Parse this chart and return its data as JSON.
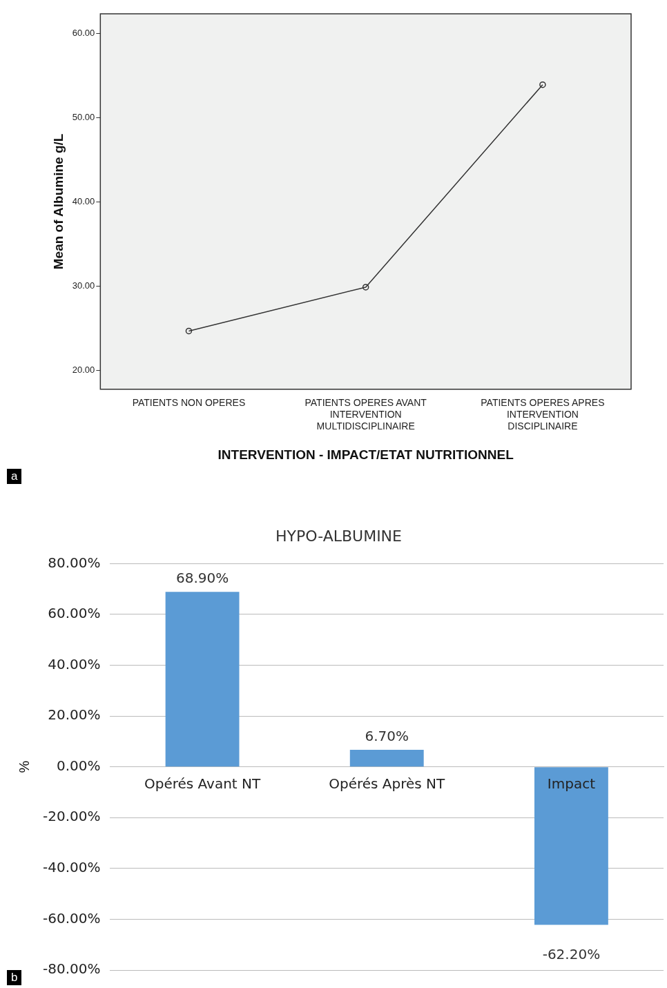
{
  "chart_data": [
    {
      "type": "line",
      "xlabel": "INTERVENTION - IMPACT/ETAT NUTRITIONNEL",
      "ylabel": "Mean of Albumine g/L",
      "categories": [
        "PATIENTS NON OPERES",
        "PATIENTS OPERES AVANT INTERVENTION MULTIDISCIPLINAIRE",
        "PATIENTS OPERES APRES INTERVENTION DISCIPLINAIRE"
      ],
      "values": [
        24.7,
        29.9,
        53.9
      ],
      "color": "#333333",
      "marker": "circle",
      "line_style": "solid",
      "ylim": [
        17.8,
        62.3
      ],
      "yticks": [
        {
          "value": 20,
          "label": "20.00"
        },
        {
          "value": 30,
          "label": "30.00"
        },
        {
          "value": 40,
          "label": "40.00"
        },
        {
          "value": 50,
          "label": "50.00"
        },
        {
          "value": 60,
          "label": "60.00"
        }
      ],
      "grid": false,
      "legend": false,
      "annotations": [
        "a"
      ]
    },
    {
      "type": "bar",
      "title": "HYPO-ALBUMINE",
      "ylabel": "%",
      "categories": [
        "Opérés Avant NT",
        "Opérés Après NT",
        "Impact"
      ],
      "values": [
        68.9,
        6.7,
        -62.2
      ],
      "color": "#5b9bd5",
      "value_labels": [
        "68.90%",
        "6.70%",
        "-62.20%"
      ],
      "ylim": [
        -80,
        80
      ],
      "yticks": [
        {
          "value": -80,
          "label": "-80.00%"
        },
        {
          "value": -60,
          "label": "-60.00%"
        },
        {
          "value": -40,
          "label": "-40.00%"
        },
        {
          "value": -20,
          "label": "-20.00%"
        },
        {
          "value": 0,
          "label": "0.00%"
        },
        {
          "value": 20,
          "label": "20.00%"
        },
        {
          "value": 40,
          "label": "40.00%"
        },
        {
          "value": 60,
          "label": "60.00%"
        },
        {
          "value": 80,
          "label": "80.00%"
        }
      ],
      "grid": "y",
      "legend": false,
      "annotations": [
        "b"
      ]
    }
  ]
}
